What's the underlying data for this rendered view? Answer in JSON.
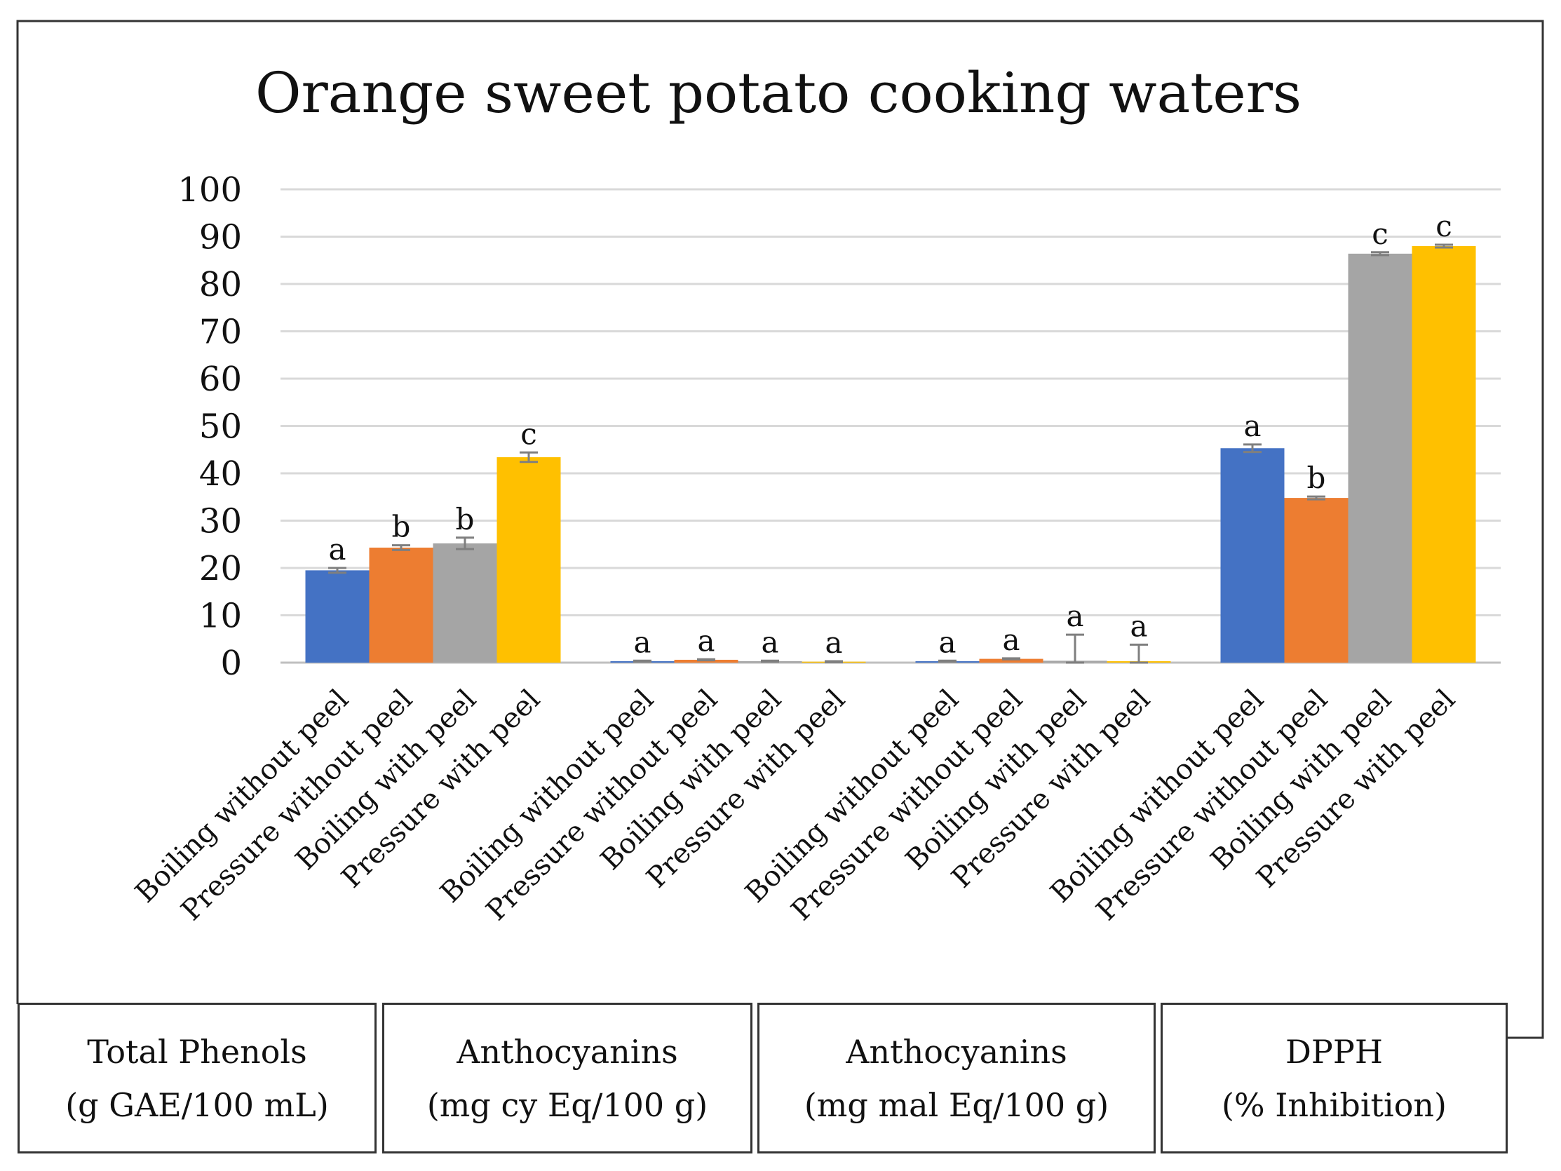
{
  "chart_data": {
    "type": "bar",
    "title": "Orange sweet potato cooking waters",
    "ylim": [
      0,
      100
    ],
    "yticks": [
      0,
      10,
      20,
      30,
      40,
      50,
      60,
      70,
      80,
      90,
      100
    ],
    "grid": true,
    "series_colors": [
      "#4472C4",
      "#ED7D31",
      "#A5A5A5",
      "#FFC000"
    ],
    "groups": [
      {
        "label_line1": "Total Phenols",
        "label_line2": "(g GAE/100 mL)",
        "categories": [
          "Boiling without peel",
          "Pressure without peel",
          "Boiling with peel",
          "Pressure with peel"
        ],
        "values": [
          19.5,
          24.3,
          25.2,
          43.4
        ],
        "errors": [
          0.5,
          0.5,
          1.2,
          1.0
        ],
        "letters": [
          "a",
          "b",
          "b",
          "c"
        ]
      },
      {
        "label_line1": "Anthocyanins",
        "label_line2": "(mg cy Eq/100 g)",
        "categories": [
          "Boiling without peel",
          "Pressure without peel",
          "Boiling with peel",
          "Pressure with peel"
        ],
        "values": [
          0.3,
          0.6,
          0.3,
          0.2
        ],
        "errors": [
          0.1,
          0.1,
          0.1,
          0.1
        ],
        "letters": [
          "a",
          "a",
          "a",
          "a"
        ]
      },
      {
        "label_line1": "Anthocyanins",
        "label_line2": "(mg mal Eq/100 g)",
        "categories": [
          "Boiling without peel",
          "Pressure without peel",
          "Boiling with peel",
          "Pressure with peel"
        ],
        "values": [
          0.3,
          0.8,
          0.4,
          0.3
        ],
        "errors": [
          0.1,
          0.1,
          5.5,
          3.5
        ],
        "letters": [
          "a",
          "a",
          "a",
          "a"
        ]
      },
      {
        "label_line1": "DPPH",
        "label_line2": "(% Inhibition)",
        "categories": [
          "Boiling without peel",
          "Pressure without peel",
          "Boiling with peel",
          "Pressure with peel"
        ],
        "values": [
          45.3,
          34.8,
          86.4,
          88.0
        ],
        "errors": [
          0.8,
          0.3,
          0.3,
          0.3
        ],
        "letters": [
          "a",
          "b",
          "c",
          "c"
        ]
      }
    ]
  }
}
